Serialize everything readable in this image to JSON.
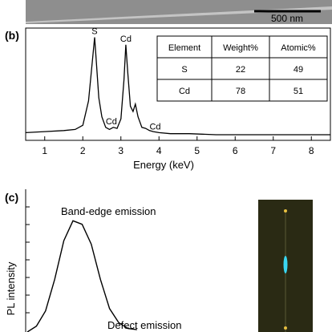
{
  "panel_a": {
    "scale_bar_label": "500 nm"
  },
  "panel_b": {
    "label": "(b)",
    "table": {
      "headers": [
        "Element",
        "Weight%",
        "Atomic%"
      ],
      "rows": [
        [
          "S",
          "22",
          "49"
        ],
        [
          "Cd",
          "78",
          "51"
        ]
      ]
    }
  },
  "panel_c": {
    "label": "(c)",
    "annotations": [
      "Band-edge emission",
      "Defect emission"
    ],
    "ylabel": "PL intensity"
  },
  "colors": {
    "sem_bg": "#8e8e8e",
    "sem_wire": "#c4c4c4",
    "inset_bg": "#2a2a14",
    "inset_wire": "#5a5a34",
    "glow": "#3ad6f2",
    "tip": "#e8c040"
  },
  "chart_data": [
    {
      "type": "line",
      "panel": "(b)",
      "xlabel": "Energy (keV)",
      "ylabel": "",
      "xlim": [
        0.5,
        8.5
      ],
      "ylim": [
        0,
        1
      ],
      "xticks": [
        1,
        2,
        3,
        4,
        5,
        6,
        7,
        8
      ],
      "peak_labels": [
        {
          "text": "S",
          "x": 2.31,
          "y": 0.95
        },
        {
          "text": "Cd",
          "x": 3.13,
          "y": 0.88
        },
        {
          "text": "Cd",
          "x": 2.75,
          "y": 0.1
        },
        {
          "text": "Cd",
          "x": 3.9,
          "y": 0.05
        }
      ],
      "series": [
        {
          "x": [
            0.5,
            1.0,
            1.5,
            1.8,
            2.0,
            2.15,
            2.25,
            2.31,
            2.36,
            2.42,
            2.5,
            2.6,
            2.7,
            2.8,
            2.9,
            3.0,
            3.08,
            3.13,
            3.18,
            3.25,
            3.32,
            3.38,
            3.45,
            3.55,
            3.65,
            3.75,
            3.85,
            4.0,
            4.3,
            4.8,
            5.5,
            6.5,
            7.5,
            8.5
          ],
          "y": [
            0.05,
            0.06,
            0.07,
            0.08,
            0.12,
            0.35,
            0.72,
            0.95,
            0.7,
            0.38,
            0.2,
            0.1,
            0.08,
            0.1,
            0.09,
            0.18,
            0.55,
            0.88,
            0.62,
            0.3,
            0.25,
            0.32,
            0.2,
            0.1,
            0.09,
            0.07,
            0.06,
            0.05,
            0.04,
            0.04,
            0.03,
            0.03,
            0.03,
            0.03
          ]
        }
      ]
    },
    {
      "type": "line",
      "panel": "(c)",
      "xlabel": "",
      "ylabel": "PL intensity",
      "xlim": [
        0,
        1
      ],
      "ylim": [
        0,
        1
      ],
      "series": [
        {
          "x": [
            0.0,
            0.03,
            0.06,
            0.09,
            0.12,
            0.15,
            0.18,
            0.21,
            0.24,
            0.27,
            0.3,
            0.33,
            0.36
          ],
          "y": [
            0.0,
            0.05,
            0.18,
            0.45,
            0.78,
            0.95,
            0.92,
            0.75,
            0.45,
            0.2,
            0.08,
            0.03,
            0.02
          ]
        }
      ]
    }
  ]
}
